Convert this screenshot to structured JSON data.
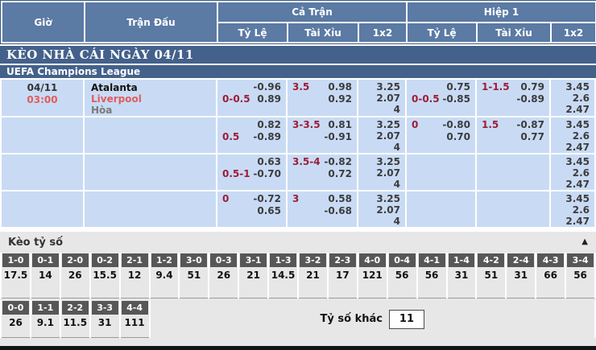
{
  "header": {
    "col_time": "Giờ",
    "col_match": "Trận Đấu",
    "group_full": "Cả Trận",
    "group_half": "Hiệp 1",
    "sub_odds": "Tỷ Lệ",
    "sub_ou": "Tài Xỉu",
    "sub_1x2": "1x2"
  },
  "section_title": "KÈO NHÀ CÁI NGÀY 04/11",
  "league_title": "UEFA Champions League",
  "rows": [
    {
      "date": "04/11",
      "time": "03:00",
      "teams": [
        "Atalanta",
        "Liverpool",
        "Hòa"
      ],
      "ft": {
        "hc": {
          "l1": "",
          "v1": "-0.96",
          "l2": "0-0.5",
          "v2": "0.89"
        },
        "ou": {
          "l1": "3.5",
          "v1": "0.98",
          "l2": "",
          "v2": "0.92"
        },
        "x12": [
          "3.25",
          "2.07",
          "4"
        ]
      },
      "h1": {
        "hc": {
          "l1": "",
          "v1": "0.75",
          "l2": "0-0.5",
          "v2": "-0.85"
        },
        "ou": {
          "l1": "1-1.5",
          "v1": "0.79",
          "l2": "",
          "v2": "-0.89"
        },
        "x12": [
          "3.45",
          "2.6",
          "2.47"
        ]
      }
    },
    {
      "date": "",
      "time": "",
      "teams": [
        "",
        "",
        ""
      ],
      "ft": {
        "hc": {
          "l1": "",
          "v1": "0.82",
          "l2": "0.5",
          "v2": "-0.89"
        },
        "ou": {
          "l1": "3-3.5",
          "v1": "0.81",
          "l2": "",
          "v2": "-0.91"
        },
        "x12": [
          "3.25",
          "2.07",
          "4"
        ]
      },
      "h1": {
        "hc": {
          "l1": "0",
          "v1": "-0.80",
          "l2": "",
          "v2": "0.70"
        },
        "ou": {
          "l1": "1.5",
          "v1": "-0.87",
          "l2": "",
          "v2": "0.77"
        },
        "x12": [
          "3.45",
          "2.6",
          "2.47"
        ]
      }
    },
    {
      "date": "",
      "time": "",
      "teams": [
        "",
        "",
        ""
      ],
      "ft": {
        "hc": {
          "l1": "",
          "v1": "0.63",
          "l2": "0.5-1",
          "v2": "-0.70"
        },
        "ou": {
          "l1": "3.5-4",
          "v1": "-0.82",
          "l2": "",
          "v2": "0.72"
        },
        "x12": [
          "3.25",
          "2.07",
          "4"
        ]
      },
      "h1": {
        "hc": {
          "l1": "",
          "v1": "",
          "l2": "",
          "v2": ""
        },
        "ou": {
          "l1": "",
          "v1": "",
          "l2": "",
          "v2": ""
        },
        "x12": [
          "3.45",
          "2.6",
          "2.47"
        ]
      }
    },
    {
      "date": "",
      "time": "",
      "teams": [
        "",
        "",
        ""
      ],
      "ft": {
        "hc": {
          "l1": "0",
          "v1": "-0.72",
          "l2": "",
          "v2": "0.65"
        },
        "ou": {
          "l1": "3",
          "v1": "0.58",
          "l2": "",
          "v2": "-0.68"
        },
        "x12": [
          "3.25",
          "2.07",
          "4"
        ]
      },
      "h1": {
        "hc": {
          "l1": "",
          "v1": "",
          "l2": "",
          "v2": ""
        },
        "ou": {
          "l1": "",
          "v1": "",
          "l2": "",
          "v2": ""
        },
        "x12": [
          "3.45",
          "2.6",
          "2.47"
        ]
      }
    }
  ],
  "score_section": {
    "title": "Kèo tỷ số",
    "collapse_icon": "▲",
    "row1": [
      {
        "score": "1-0",
        "odds": "17.5"
      },
      {
        "score": "0-1",
        "odds": "14"
      },
      {
        "score": "2-0",
        "odds": "26"
      },
      {
        "score": "0-2",
        "odds": "15.5"
      },
      {
        "score": "2-1",
        "odds": "12"
      },
      {
        "score": "1-2",
        "odds": "9.4"
      },
      {
        "score": "3-0",
        "odds": "51"
      },
      {
        "score": "0-3",
        "odds": "26"
      },
      {
        "score": "3-1",
        "odds": "21"
      },
      {
        "score": "1-3",
        "odds": "14.5"
      },
      {
        "score": "3-2",
        "odds": "21"
      },
      {
        "score": "2-3",
        "odds": "17"
      },
      {
        "score": "4-0",
        "odds": "121"
      },
      {
        "score": "0-4",
        "odds": "56"
      },
      {
        "score": "4-1",
        "odds": "56"
      },
      {
        "score": "1-4",
        "odds": "31"
      },
      {
        "score": "4-2",
        "odds": "51"
      },
      {
        "score": "2-4",
        "odds": "31"
      },
      {
        "score": "4-3",
        "odds": "66"
      },
      {
        "score": "3-4",
        "odds": "56"
      }
    ],
    "row2": [
      {
        "score": "0-0",
        "odds": "26"
      },
      {
        "score": "1-1",
        "odds": "9.1"
      },
      {
        "score": "2-2",
        "odds": "11.5"
      },
      {
        "score": "3-3",
        "odds": "31"
      },
      {
        "score": "4-4",
        "odds": "111"
      }
    ],
    "other_label": "Tỷ số khác",
    "other_value": "11"
  },
  "colors": {
    "header_blue": "#5b7aa4",
    "bar_blue": "#44618b",
    "row_bg": "#c9dbf4",
    "score_chip": "#575757",
    "accent_red": "#e25c5c",
    "handicap_red": "#9e1c36",
    "section_gray": "#e7e7e7"
  }
}
